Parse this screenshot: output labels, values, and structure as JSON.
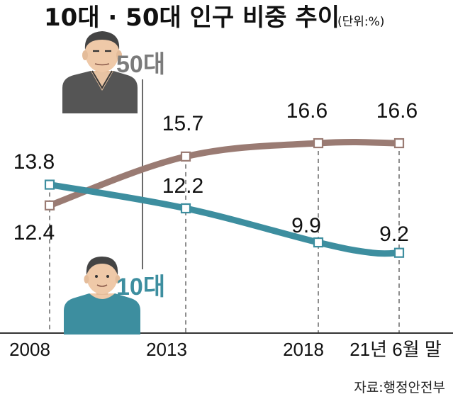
{
  "title": "10대 · 50대 인구 비중 추이",
  "unit": "(단위:%)",
  "source": "자료:행정안전부",
  "colors": {
    "age50": "#9a7b73",
    "age10": "#3d8e9f",
    "age50_label": "#7b7b7b",
    "age10_label": "#3d8e9f"
  },
  "icons": {
    "age50": "man-50s-icon",
    "age10": "man-10s-icon"
  },
  "chart_data": {
    "type": "line",
    "x": [
      "2008",
      "2013",
      "2018",
      "21년 6월 말"
    ],
    "series": [
      {
        "name": "50대",
        "values": [
          12.4,
          15.7,
          16.6,
          16.6
        ],
        "color": "#9a7b73"
      },
      {
        "name": "10대",
        "values": [
          13.8,
          12.2,
          9.9,
          9.2
        ],
        "color": "#3d8e9f"
      }
    ],
    "xlabel": "",
    "ylabel": "",
    "grid": false,
    "legend": "labels beside person icons"
  }
}
